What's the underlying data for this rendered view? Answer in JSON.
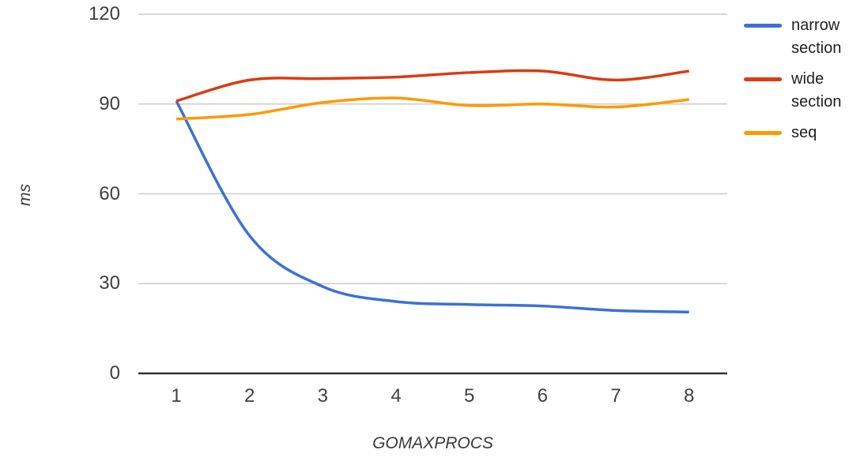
{
  "chart_data": {
    "type": "line",
    "title": "",
    "xlabel": "GOMAXPROCS",
    "ylabel": "ms",
    "x": [
      1,
      2,
      3,
      4,
      5,
      6,
      7,
      8
    ],
    "series": [
      {
        "name": "narrow section",
        "color": "#3D6FD7",
        "values": [
          91,
          46,
          29,
          24,
          23,
          22.5,
          21,
          20.5
        ]
      },
      {
        "name": "wide section",
        "color": "#D93B14",
        "values": [
          91,
          98,
          98.5,
          99,
          100.5,
          101,
          98,
          101
        ]
      },
      {
        "name": "seq",
        "color": "#FF9900",
        "values": [
          85,
          86.5,
          90.5,
          92,
          89.5,
          90,
          89,
          91.5
        ]
      }
    ],
    "ylim": [
      0,
      120
    ],
    "yticks": [
      0,
      30,
      60,
      90,
      120
    ],
    "xticks": [
      1,
      2,
      3,
      4,
      5,
      6,
      7,
      8
    ],
    "grid": true,
    "legend_position": "right",
    "line_smoothing": true
  },
  "colors": {
    "background": "#FFFFFF",
    "gridline": "#CCCCCC",
    "axis_line": "#333333",
    "tick_text": "#404040",
    "axis_title_text": "#3A3A3A",
    "legend_text": "#212121"
  }
}
